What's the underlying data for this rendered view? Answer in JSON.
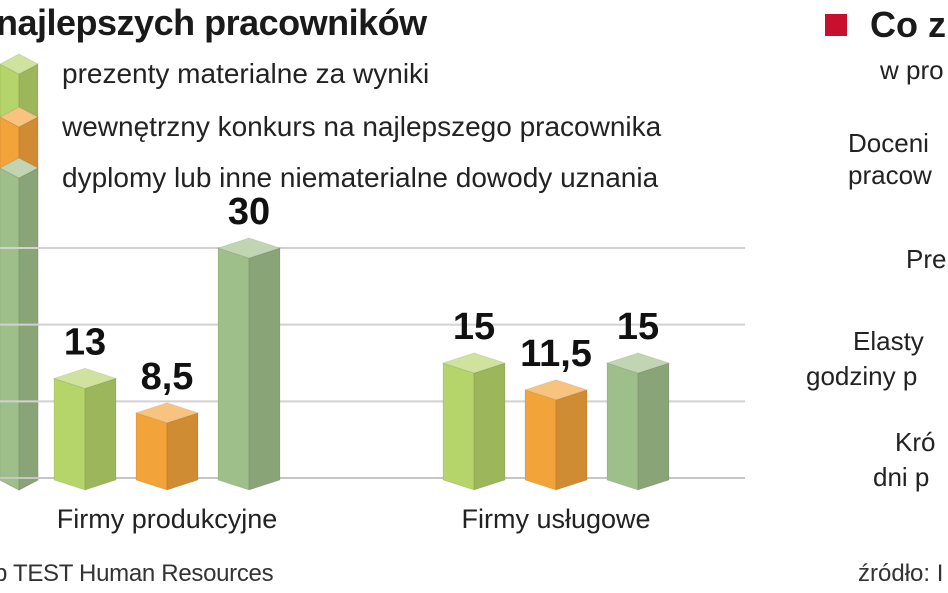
{
  "chart_data": {
    "type": "bar",
    "title": "najlepszych pracowników",
    "categories": [
      "Firmy produkcyjne",
      "Firmy usługowe"
    ],
    "series": [
      {
        "name": "prezenty materialne za wyniki",
        "values": [
          13,
          15
        ],
        "labels": [
          "13",
          "15"
        ],
        "color": "#b5d46a"
      },
      {
        "name": "wewnętrzny konkurs na najlepszego pracownika",
        "values": [
          8.5,
          11.5
        ],
        "labels": [
          "8,5",
          "11,5"
        ],
        "color": "#f2a33a"
      },
      {
        "name": "dyplomy lub inne niematerialne dowody uznania",
        "values": [
          30,
          15
        ],
        "labels": [
          "30",
          "15"
        ],
        "color": "#9fbf8a"
      }
    ],
    "ylim": [
      0,
      30
    ],
    "grid": true,
    "legend_position": "top-left"
  },
  "source_left": "p TEST Human Resources",
  "right_panel": {
    "title": "Co z",
    "subtitle": "w pro",
    "items": [
      "Doceni",
      "pracow",
      "Pre",
      "Elasty",
      "godziny p",
      "Kró",
      "dni p"
    ],
    "source": "źródło: I"
  }
}
